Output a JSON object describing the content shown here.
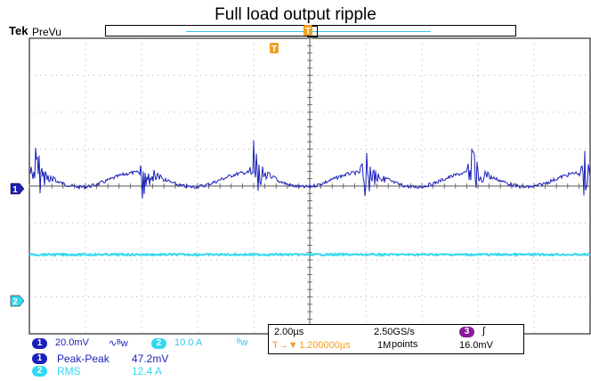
{
  "title": "Full load output ripple",
  "header": {
    "brand": "Tek",
    "mode": "PreVu"
  },
  "colors": {
    "ch1": "#1a1fb8",
    "ch2": "#33d8f0",
    "trigger": "#f0a020",
    "ch3": "#8a1a9a",
    "grid": "#9a9a9a"
  },
  "markers": {
    "trigger_label": "T",
    "ch1_label": "1",
    "ch2_label": "2"
  },
  "status": {
    "ch1_scale": "20.0mV",
    "ch1_coupling": "∿ᴮw",
    "ch2_number": "2",
    "ch2_scale": "10.0 A",
    "ch2_coupling": "ᴮw",
    "ch1_number": "1",
    "timebase": "2.00µs",
    "sample_rate": "2.50GS/s",
    "trigger_position": "1.200000µs",
    "trigger_arrow": "T→▼",
    "record_length": "1M",
    "record_units": "points",
    "trigger_source": "3",
    "trigger_slope": "∫",
    "trigger_level": "16.0mV"
  },
  "measurements": [
    {
      "channel": "1",
      "name": "Peak-Peak",
      "value": "47.2mV"
    },
    {
      "channel": "2",
      "name": "RMS",
      "value": "12.4 A"
    }
  ]
}
